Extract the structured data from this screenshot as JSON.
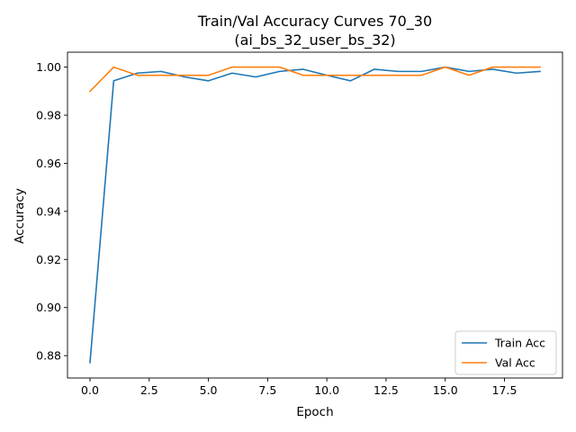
{
  "chart_data": {
    "type": "line",
    "title": "Train/Val Accuracy Curves 70_30",
    "subtitle": "(ai_bs_32_user_bs_32)",
    "xlabel": "Epoch",
    "ylabel": "Accuracy",
    "xlim": [
      -0.95,
      19.95
    ],
    "ylim": [
      0.8707,
      1.0062
    ],
    "xticks": [
      0.0,
      2.5,
      5.0,
      7.5,
      10.0,
      12.5,
      15.0,
      17.5
    ],
    "xtick_labels": [
      "0.0",
      "2.5",
      "5.0",
      "7.5",
      "10.0",
      "12.5",
      "15.0",
      "17.5"
    ],
    "yticks": [
      0.88,
      0.9,
      0.92,
      0.94,
      0.96,
      0.98,
      1.0
    ],
    "ytick_labels": [
      "0.88",
      "0.90",
      "0.92",
      "0.94",
      "0.96",
      "0.98",
      "1.00"
    ],
    "grid": false,
    "legend_position": "lower-right",
    "x": [
      0,
      1,
      2,
      3,
      4,
      5,
      6,
      7,
      8,
      9,
      10,
      11,
      12,
      13,
      14,
      15,
      16,
      17,
      18,
      19
    ],
    "series": [
      {
        "name": "Train Acc",
        "color": "#1f77b4",
        "values": [
          0.8771,
          0.9943,
          0.9975,
          0.9982,
          0.9959,
          0.9943,
          0.9975,
          0.9959,
          0.9982,
          0.9991,
          0.9966,
          0.9943,
          0.9991,
          0.9982,
          0.9982,
          1.0,
          0.9982,
          0.9991,
          0.9975,
          0.9982
        ]
      },
      {
        "name": "Val Acc",
        "color": "#ff7f0e",
        "values": [
          0.9899,
          1.0,
          0.9966,
          0.9966,
          0.9966,
          0.9966,
          1.0,
          1.0,
          1.0,
          0.9966,
          0.9966,
          0.9966,
          0.9966,
          0.9966,
          0.9966,
          1.0,
          0.9966,
          1.0,
          1.0,
          1.0
        ]
      }
    ]
  }
}
